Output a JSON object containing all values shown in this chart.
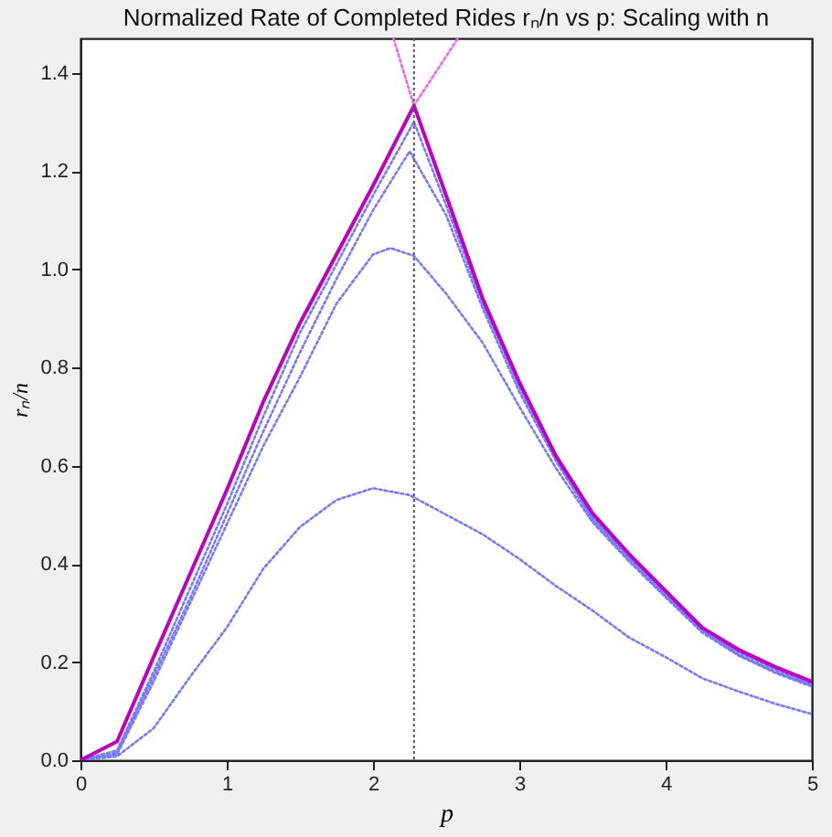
{
  "chart_data": {
    "type": "line",
    "title": "Normalized Rate of Completed Rides rₙ/n vs p: Scaling with n",
    "xlabel": "p",
    "ylabel": "rₙ/n",
    "xlim": [
      0,
      5
    ],
    "ylim": [
      0,
      1.47
    ],
    "xticks": [
      0,
      1,
      2,
      3,
      4,
      5
    ],
    "yticks": [
      {
        "value": 0,
        "label": "0.0"
      },
      {
        "value": 0.2,
        "label": "0.2"
      },
      {
        "value": 0.4,
        "label": "0.4"
      },
      {
        "value": 0.6,
        "label": "0.6"
      },
      {
        "value": 0.8,
        "label": "0.8"
      },
      {
        "value": 1.0,
        "label": "1.0"
      },
      {
        "value": 1.2,
        "label": "1.2"
      },
      {
        "value": 1.4,
        "label": "1.4"
      }
    ],
    "grid": false,
    "ref_lines": [
      {
        "axis": "x",
        "value": 2.28,
        "color": "#555555",
        "line_style": "dotted"
      }
    ],
    "series": [
      {
        "color": "#ee66ee",
        "line_style": "dotted",
        "x": [
          2.14,
          2.28
        ],
        "values": [
          1.47,
          1.333
        ]
      },
      {
        "color": "#ee66ee",
        "line_style": "dotted",
        "x": [
          2.28,
          2.58
        ],
        "values": [
          1.333,
          1.47
        ]
      },
      {
        "color": "#7777ff",
        "line_style": "dotted",
        "x": [
          0,
          0.25,
          0.5,
          0.75,
          1,
          1.25,
          1.5,
          1.75,
          2,
          2.25,
          2.5,
          2.75,
          3,
          3.25,
          3.5,
          3.75,
          4,
          4.25,
          4.5,
          4.75,
          5
        ],
        "values": [
          0,
          0.008,
          0.065,
          0.17,
          0.27,
          0.39,
          0.475,
          0.53,
          0.554,
          0.54,
          0.5,
          0.46,
          0.41,
          0.355,
          0.305,
          0.25,
          0.21,
          0.167,
          0.14,
          0.115,
          0.094
        ]
      },
      {
        "color": "#7777ff",
        "line_style": "dotted",
        "x": [
          0,
          0.25,
          0.5,
          0.75,
          1,
          1.25,
          1.5,
          1.75,
          2,
          2.12,
          2.28,
          2.5,
          2.75,
          3,
          3.25,
          3.5,
          3.75,
          4,
          4.25,
          4.5,
          4.75,
          5
        ],
        "values": [
          0,
          0.012,
          0.16,
          0.32,
          0.48,
          0.64,
          0.78,
          0.93,
          1.03,
          1.043,
          1.027,
          0.95,
          0.85,
          0.72,
          0.595,
          0.485,
          0.405,
          0.332,
          0.26,
          0.213,
          0.178,
          0.15
        ]
      },
      {
        "color": "#7777ff",
        "line_style": "dotted",
        "x": [
          0,
          0.25,
          0.5,
          0.75,
          1,
          1.25,
          1.5,
          1.75,
          2,
          2.25,
          2.5,
          2.75,
          3,
          3.25,
          3.5,
          3.75,
          4,
          4.25,
          4.5,
          4.75,
          5
        ],
        "values": [
          0,
          0.015,
          0.17,
          0.33,
          0.5,
          0.67,
          0.83,
          0.98,
          1.12,
          1.24,
          1.11,
          0.92,
          0.75,
          0.61,
          0.49,
          0.41,
          0.335,
          0.265,
          0.215,
          0.18,
          0.153
        ]
      },
      {
        "color": "#7777ff",
        "line_style": "dotted",
        "x": [
          0,
          0.25,
          0.5,
          0.75,
          1,
          1.25,
          1.5,
          1.75,
          2,
          2.28,
          2.5,
          2.75,
          3,
          3.25,
          3.5,
          3.75,
          4,
          4.25,
          4.5,
          4.75,
          5
        ],
        "values": [
          0,
          0.02,
          0.18,
          0.35,
          0.52,
          0.7,
          0.87,
          1.01,
          1.15,
          1.3,
          1.13,
          0.93,
          0.76,
          0.615,
          0.495,
          0.415,
          0.34,
          0.265,
          0.22,
          0.185,
          0.155
        ]
      },
      {
        "color": "#bf00bf",
        "line_style": "solid",
        "x": [
          0,
          0.25,
          0.5,
          0.75,
          1,
          1.25,
          1.5,
          1.75,
          2,
          2.28,
          2.5,
          2.75,
          3,
          3.25,
          3.5,
          3.75,
          4,
          4.25,
          4.5,
          4.75,
          5
        ],
        "values": [
          0,
          0.038,
          0.21,
          0.38,
          0.55,
          0.73,
          0.89,
          1.03,
          1.17,
          1.333,
          1.15,
          0.94,
          0.77,
          0.62,
          0.503,
          0.42,
          0.345,
          0.27,
          0.225,
          0.19,
          0.16
        ]
      }
    ]
  }
}
